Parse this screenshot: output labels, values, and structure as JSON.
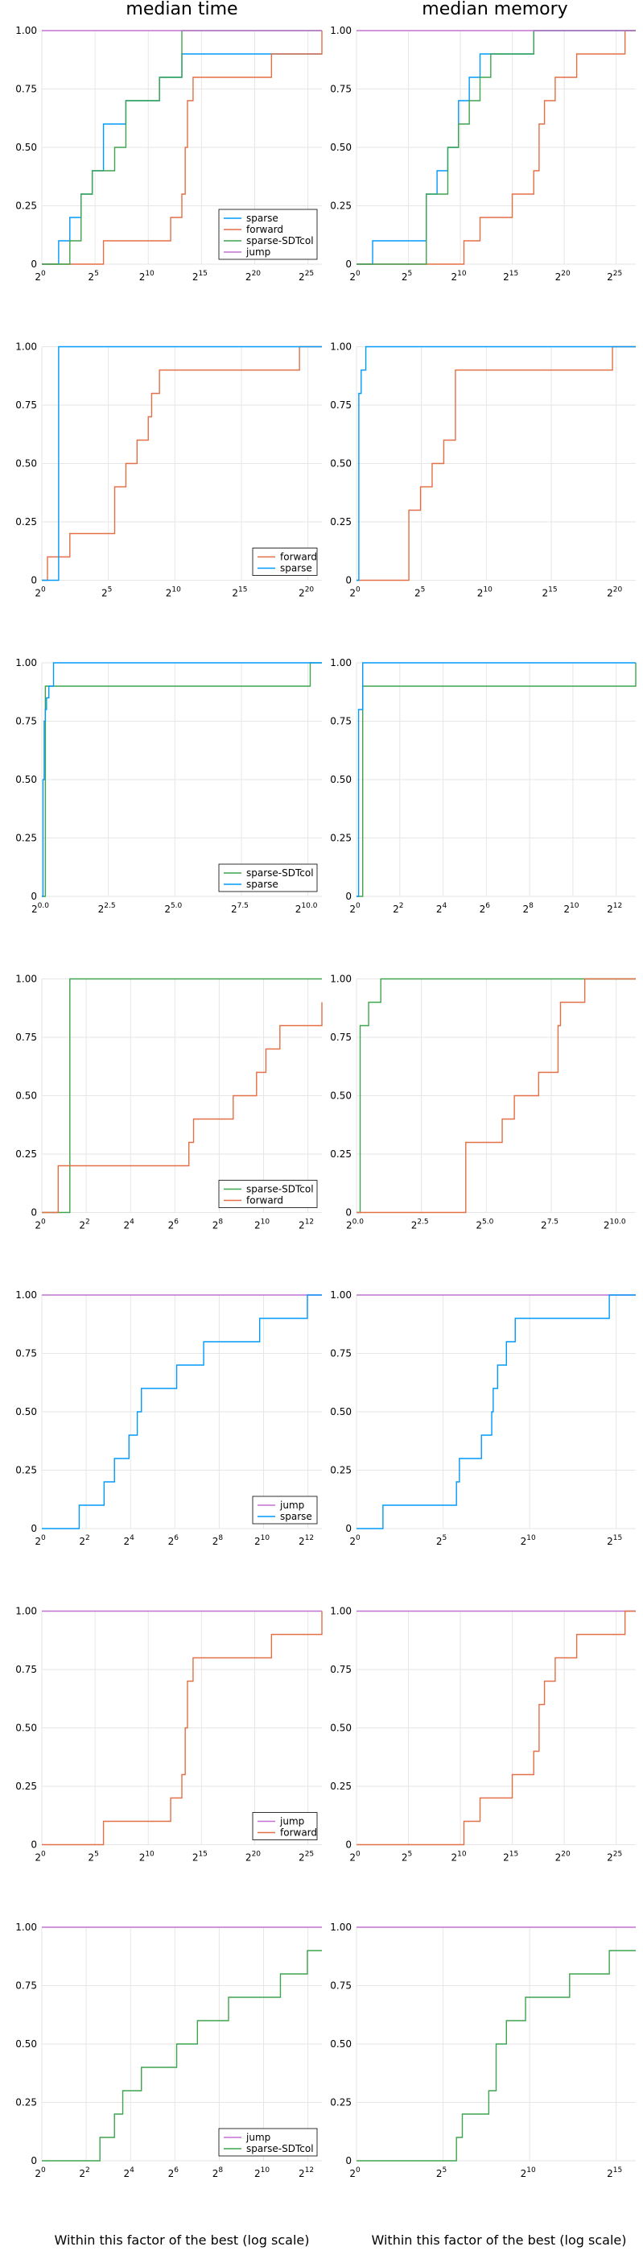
{
  "titles": [
    "median time",
    "median memory"
  ],
  "xlabel": "Within this factor of the best (log scale)",
  "colors": {
    "sparse": "#009AFA",
    "forward": "#E36F47",
    "sparse-SDTcol": "#3EA44E",
    "jump": "#C271D2"
  },
  "chart_data": [
    {
      "type": "line",
      "panel": "row1-median-time",
      "xscale": "log2",
      "xlim": [
        0,
        25
      ],
      "ylim": [
        0,
        1
      ],
      "xticks": [
        "2^0",
        "2^5",
        "2^10",
        "2^15",
        "2^20",
        "2^25"
      ],
      "yticks": [
        "0",
        "0.25",
        "0.50",
        "0.75",
        "1.00"
      ],
      "legend": [
        "sparse",
        "forward",
        "sparse-SDTcol",
        "jump"
      ],
      "series": [
        {
          "name": "sparse",
          "x": [
            1.5,
            2.5,
            3.5,
            4.5,
            5.5,
            7.5,
            10.5,
            12.5
          ],
          "y": [
            0.1,
            0.2,
            0.3,
            0.4,
            0.6,
            0.7,
            0.8,
            0.9
          ]
        },
        {
          "name": "forward",
          "x": [
            5.5,
            11.5,
            12.5,
            12.8,
            13.0,
            13.5,
            20.5,
            25.0
          ],
          "y": [
            0.1,
            0.2,
            0.3,
            0.5,
            0.7,
            0.8,
            0.9,
            1.0
          ]
        },
        {
          "name": "sparse-SDTcol",
          "x": [
            2.5,
            3.5,
            4.5,
            6.5,
            7.5,
            10.5,
            12.5
          ],
          "y": [
            0.1,
            0.3,
            0.4,
            0.5,
            0.7,
            0.8,
            1.0
          ]
        },
        {
          "name": "jump",
          "x": [
            0,
            25
          ],
          "y": [
            1.0,
            1.0
          ]
        }
      ]
    },
    {
      "type": "line",
      "panel": "row1-median-memory",
      "xscale": "log2",
      "xlim": [
        0,
        26
      ],
      "ylim": [
        0,
        1
      ],
      "xticks": [
        "2^0",
        "2^5",
        "2^10",
        "2^15",
        "2^20",
        "2^25"
      ],
      "yticks": [
        "0",
        "0.25",
        "0.50",
        "0.75",
        "1.00"
      ],
      "legend": [],
      "series": [
        {
          "name": "sparse",
          "x": [
            1.5,
            6.5,
            7.5,
            8.5,
            9.5,
            10.5,
            11.5,
            16.5
          ],
          "y": [
            0.1,
            0.3,
            0.4,
            0.5,
            0.7,
            0.8,
            0.9,
            1.0
          ]
        },
        {
          "name": "forward",
          "x": [
            10.0,
            11.5,
            14.5,
            16.5,
            17.0,
            17.5,
            18.5,
            20.5,
            25.0
          ],
          "y": [
            0.1,
            0.2,
            0.3,
            0.4,
            0.6,
            0.7,
            0.8,
            0.9,
            1.0
          ]
        },
        {
          "name": "sparse-SDTcol",
          "x": [
            6.5,
            8.5,
            9.5,
            10.5,
            11.5,
            12.5,
            16.5
          ],
          "y": [
            0.3,
            0.5,
            0.6,
            0.7,
            0.8,
            0.9,
            1.0
          ]
        },
        {
          "name": "jump",
          "x": [
            0,
            26
          ],
          "y": [
            1.0,
            1.0
          ]
        }
      ]
    },
    {
      "type": "line",
      "panel": "row2-median-time",
      "xscale": "log2",
      "xlim": [
        0,
        25
      ],
      "ylim": [
        0,
        1
      ],
      "xticks": [
        "2^0",
        "2^5",
        "2^10",
        "2^15",
        "2^20"
      ],
      "yticks": [
        "0",
        "0.25",
        "0.50",
        "0.75",
        "1.00"
      ],
      "legend": [
        "forward",
        "sparse"
      ],
      "series": [
        {
          "name": "forward",
          "x": [
            0.5,
            2.5,
            6.5,
            7.5,
            8.5,
            9.5,
            9.8,
            10.5,
            23.0
          ],
          "y": [
            0.1,
            0.2,
            0.4,
            0.5,
            0.6,
            0.7,
            0.8,
            0.9,
            1.0
          ]
        },
        {
          "name": "sparse",
          "x": [
            1.5
          ],
          "y": [
            1.0
          ]
        }
      ]
    },
    {
      "type": "line",
      "panel": "row2-median-memory",
      "xscale": "log2",
      "xlim": [
        0,
        24
      ],
      "ylim": [
        0,
        1
      ],
      "xticks": [
        "2^0",
        "2^5",
        "2^10",
        "2^15",
        "2^20"
      ],
      "yticks": [
        "0",
        "0.25",
        "0.50",
        "0.75",
        "1.00"
      ],
      "legend": [],
      "series": [
        {
          "name": "forward",
          "x": [
            4.5,
            5.5,
            6.5,
            7.5,
            8.5,
            22.0
          ],
          "y": [
            0.3,
            0.4,
            0.5,
            0.6,
            0.9,
            1.0
          ]
        },
        {
          "name": "sparse",
          "x": [
            0.2,
            0.4,
            0.8
          ],
          "y": [
            0.8,
            0.9,
            1.0
          ]
        }
      ]
    },
    {
      "type": "line",
      "panel": "row3-median-time",
      "xscale": "log2",
      "xlim": [
        0,
        12
      ],
      "ylim": [
        0,
        1
      ],
      "xticks": [
        "2^0.0",
        "2^2.5",
        "2^5.0",
        "2^7.5",
        "2^10.0"
      ],
      "yticks": [
        "0",
        "0.25",
        "0.50",
        "0.75",
        "1.00"
      ],
      "legend": [
        "sparse-SDTcol",
        "sparse"
      ],
      "series": [
        {
          "name": "sparse-SDTcol",
          "x": [
            0.15,
            11.5
          ],
          "y": [
            0.9,
            1.0
          ]
        },
        {
          "name": "sparse",
          "x": [
            0.05,
            0.1,
            0.15,
            0.2,
            0.3,
            0.5
          ],
          "y": [
            0.5,
            0.75,
            0.8,
            0.85,
            0.9,
            1.0
          ]
        }
      ]
    },
    {
      "type": "line",
      "panel": "row3-median-memory",
      "xscale": "log2",
      "xlim": [
        0,
        13.5
      ],
      "ylim": [
        0,
        1
      ],
      "xticks": [
        "2^0",
        "2^2",
        "2^4",
        "2^6",
        "2^8",
        "2^10",
        "2^12"
      ],
      "yticks": [
        "0",
        "0.25",
        "0.50",
        "0.75",
        "1.00"
      ],
      "legend": [],
      "series": [
        {
          "name": "sparse-SDTcol",
          "x": [
            0.3,
            13.5
          ],
          "y": [
            0.9,
            1.0
          ]
        },
        {
          "name": "sparse",
          "x": [
            0.1,
            0.3
          ],
          "y": [
            0.8,
            1.0
          ]
        }
      ]
    },
    {
      "type": "line",
      "panel": "row4-median-time",
      "xscale": "log2",
      "xlim": [
        0,
        12
      ],
      "ylim": [
        0,
        1
      ],
      "xticks": [
        "2^0",
        "2^2",
        "2^4",
        "2^6",
        "2^8",
        "2^10",
        "2^12"
      ],
      "yticks": [
        "0",
        "0.25",
        "0.50",
        "0.75",
        "1.00"
      ],
      "legend": [
        "sparse-SDTcol",
        "forward"
      ],
      "series": [
        {
          "name": "sparse-SDTcol",
          "x": [
            1.2
          ],
          "y": [
            1.0
          ]
        },
        {
          "name": "forward",
          "x": [
            0.7,
            6.3,
            6.5,
            8.2,
            9.2,
            9.6,
            10.2,
            12.0
          ],
          "y": [
            0.2,
            0.3,
            0.4,
            0.5,
            0.6,
            0.7,
            0.8,
            0.9
          ]
        }
      ]
    },
    {
      "type": "line",
      "panel": "row4-median-memory",
      "xscale": "log2",
      "xlim": [
        0,
        11.5
      ],
      "ylim": [
        0,
        1
      ],
      "xticks": [
        "2^0.0",
        "2^2.5",
        "2^5.0",
        "2^7.5",
        "2^10.0"
      ],
      "yticks": [
        "0",
        "0.25",
        "0.50",
        "0.75",
        "1.00"
      ],
      "legend": [],
      "series": [
        {
          "name": "sparse-SDTcol",
          "x": [
            0.15,
            0.5,
            1.0
          ],
          "y": [
            0.8,
            0.9,
            1.0
          ]
        },
        {
          "name": "forward",
          "x": [
            4.5,
            6.0,
            6.5,
            7.5,
            8.3,
            8.4,
            9.4,
            11.5
          ],
          "y": [
            0.3,
            0.4,
            0.5,
            0.6,
            0.8,
            0.9,
            1.0,
            1.0
          ]
        }
      ]
    },
    {
      "type": "line",
      "panel": "row5-median-time",
      "xscale": "log2",
      "xlim": [
        0,
        13.5
      ],
      "ylim": [
        0,
        1
      ],
      "xticks": [
        "2^0",
        "2^2",
        "2^4",
        "2^6",
        "2^8",
        "2^10",
        "2^12"
      ],
      "yticks": [
        "0",
        "0.25",
        "0.50",
        "0.75",
        "1.00"
      ],
      "legend": [
        "jump",
        "sparse"
      ],
      "series": [
        {
          "name": "jump",
          "x": [
            0,
            13.5
          ],
          "y": [
            1.0,
            1.0
          ]
        },
        {
          "name": "sparse",
          "x": [
            1.8,
            3.0,
            3.5,
            4.2,
            4.6,
            4.8,
            6.5,
            7.8,
            10.5,
            12.8
          ],
          "y": [
            0.1,
            0.2,
            0.3,
            0.4,
            0.5,
            0.6,
            0.7,
            0.8,
            0.9,
            1.0
          ]
        }
      ]
    },
    {
      "type": "line",
      "panel": "row5-median-memory",
      "xscale": "log2",
      "xlim": [
        0,
        19
      ],
      "ylim": [
        0,
        1
      ],
      "xticks": [
        "2^0",
        "2^5",
        "2^10",
        "2^15"
      ],
      "yticks": [
        "0",
        "0.25",
        "0.50",
        "0.75",
        "1.00"
      ],
      "legend": [],
      "series": [
        {
          "name": "jump",
          "x": [
            0,
            19
          ],
          "y": [
            1.0,
            1.0
          ]
        },
        {
          "name": "sparse",
          "x": [
            1.8,
            6.8,
            7.0,
            8.5,
            9.2,
            9.3,
            9.6,
            10.2,
            10.8,
            17.2
          ],
          "y": [
            0.1,
            0.2,
            0.3,
            0.4,
            0.5,
            0.6,
            0.7,
            0.8,
            0.9,
            1.0
          ]
        }
      ]
    },
    {
      "type": "line",
      "panel": "row6-median-time",
      "xscale": "log2",
      "xlim": [
        0,
        25
      ],
      "ylim": [
        0,
        1
      ],
      "xticks": [
        "2^0",
        "2^5",
        "2^10",
        "2^15",
        "2^20",
        "2^25"
      ],
      "yticks": [
        "0",
        "0.25",
        "0.50",
        "0.75",
        "1.00"
      ],
      "legend": [
        "jump",
        "forward"
      ],
      "series": [
        {
          "name": "jump",
          "x": [
            0,
            25
          ],
          "y": [
            1.0,
            1.0
          ]
        },
        {
          "name": "forward",
          "x": [
            5.5,
            11.5,
            12.5,
            12.8,
            13.0,
            13.5,
            20.5,
            25.0
          ],
          "y": [
            0.1,
            0.2,
            0.3,
            0.5,
            0.7,
            0.8,
            0.9,
            1.0
          ]
        }
      ]
    },
    {
      "type": "line",
      "panel": "row6-median-memory",
      "xscale": "log2",
      "xlim": [
        0,
        26
      ],
      "ylim": [
        0,
        1
      ],
      "xticks": [
        "2^0",
        "2^5",
        "2^10",
        "2^15",
        "2^20",
        "2^25"
      ],
      "yticks": [
        "0",
        "0.25",
        "0.50",
        "0.75",
        "1.00"
      ],
      "legend": [],
      "series": [
        {
          "name": "jump",
          "x": [
            0,
            26
          ],
          "y": [
            1.0,
            1.0
          ]
        },
        {
          "name": "forward",
          "x": [
            10.0,
            11.5,
            14.5,
            16.5,
            17.0,
            17.5,
            18.5,
            20.5,
            25.0
          ],
          "y": [
            0.1,
            0.2,
            0.3,
            0.4,
            0.6,
            0.7,
            0.8,
            0.9,
            1.0
          ]
        }
      ]
    },
    {
      "type": "line",
      "panel": "row7-median-time",
      "xscale": "log2",
      "xlim": [
        0,
        13.5
      ],
      "ylim": [
        0,
        1
      ],
      "xticks": [
        "2^0",
        "2^2",
        "2^4",
        "2^6",
        "2^8",
        "2^10",
        "2^12"
      ],
      "yticks": [
        "0",
        "0.25",
        "0.50",
        "0.75",
        "1.00"
      ],
      "legend": [
        "jump",
        "sparse-SDTcol"
      ],
      "series": [
        {
          "name": "jump",
          "x": [
            0,
            13.5
          ],
          "y": [
            1.0,
            1.0
          ]
        },
        {
          "name": "sparse-SDTcol",
          "x": [
            2.8,
            3.5,
            3.9,
            4.8,
            6.5,
            7.5,
            9.0,
            11.5,
            12.8
          ],
          "y": [
            0.1,
            0.2,
            0.3,
            0.4,
            0.5,
            0.6,
            0.7,
            0.8,
            0.9
          ]
        }
      ]
    },
    {
      "type": "line",
      "panel": "row7-median-memory",
      "xscale": "log2",
      "xlim": [
        0,
        19
      ],
      "ylim": [
        0,
        1
      ],
      "xticks": [
        "2^0",
        "2^5",
        "2^10",
        "2^15"
      ],
      "yticks": [
        "0",
        "0.25",
        "0.50",
        "0.75",
        "1.00"
      ],
      "legend": [],
      "series": [
        {
          "name": "jump",
          "x": [
            0,
            19
          ],
          "y": [
            1.0,
            1.0
          ]
        },
        {
          "name": "sparse-SDTcol",
          "x": [
            6.8,
            7.2,
            9.0,
            9.5,
            10.2,
            11.5,
            14.5,
            17.2
          ],
          "y": [
            0.1,
            0.2,
            0.3,
            0.5,
            0.6,
            0.7,
            0.8,
            0.9
          ]
        }
      ]
    }
  ]
}
